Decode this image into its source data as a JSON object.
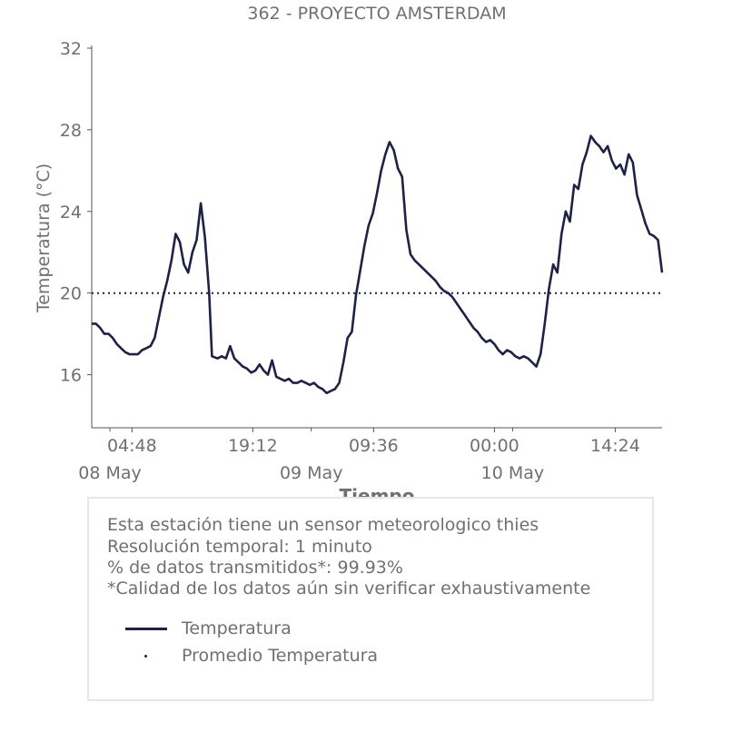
{
  "chart_data": {
    "type": "line",
    "title": "362 - PROYECTO AMSTERDAM",
    "xlabel": "Tiempo",
    "ylabel": "Temperatura (°C)",
    "ylim": [
      13.4,
      32
    ],
    "yticks": [
      16,
      20,
      24,
      28,
      32
    ],
    "xlim": [
      "2025-05-08T00:00",
      "2025-05-10T19:59"
    ],
    "xticks": [
      {
        "label": "04:48",
        "at": "2025-05-08T04:48"
      },
      {
        "label": "19:12",
        "at": "2025-05-08T19:12"
      },
      {
        "label": "09:36",
        "at": "2025-05-09T09:36"
      },
      {
        "label": "00:00",
        "at": "2025-05-10T00:00"
      },
      {
        "label": "14:24",
        "at": "2025-05-10T14:24"
      }
    ],
    "date_labels": [
      {
        "label": "08 May",
        "at": "2025-05-08T00:00"
      },
      {
        "label": "09 May",
        "at": "2025-05-09T00:00"
      },
      {
        "label": "10 May",
        "at": "2025-05-10T00:00"
      }
    ],
    "grid": false,
    "colors": {
      "line": "#1f2244",
      "text": "#707070",
      "axis": "#555555"
    },
    "series": [
      {
        "name": "Temperatura",
        "style": "solid",
        "points": [
          [
            "2025-05-08T00:00",
            18.5
          ],
          [
            "2025-05-08T00:30",
            18.5
          ],
          [
            "2025-05-08T01:00",
            18.3
          ],
          [
            "2025-05-08T01:30",
            18.0
          ],
          [
            "2025-05-08T02:00",
            18.0
          ],
          [
            "2025-05-08T02:30",
            17.8
          ],
          [
            "2025-05-08T03:00",
            17.5
          ],
          [
            "2025-05-08T03:30",
            17.3
          ],
          [
            "2025-05-08T04:00",
            17.1
          ],
          [
            "2025-05-08T04:30",
            17.0
          ],
          [
            "2025-05-08T05:00",
            17.0
          ],
          [
            "2025-05-08T05:30",
            17.0
          ],
          [
            "2025-05-08T06:00",
            17.2
          ],
          [
            "2025-05-08T06:30",
            17.3
          ],
          [
            "2025-05-08T07:00",
            17.4
          ],
          [
            "2025-05-08T07:30",
            17.8
          ],
          [
            "2025-05-08T08:00",
            18.8
          ],
          [
            "2025-05-08T08:30",
            19.8
          ],
          [
            "2025-05-08T09:00",
            20.6
          ],
          [
            "2025-05-08T09:30",
            21.6
          ],
          [
            "2025-05-08T10:00",
            22.9
          ],
          [
            "2025-05-08T10:30",
            22.5
          ],
          [
            "2025-05-08T11:00",
            21.4
          ],
          [
            "2025-05-08T11:30",
            21.0
          ],
          [
            "2025-05-08T12:00",
            22.0
          ],
          [
            "2025-05-08T12:30",
            22.6
          ],
          [
            "2025-05-08T13:00",
            24.4
          ],
          [
            "2025-05-08T13:30",
            22.7
          ],
          [
            "2025-05-08T14:00",
            20.0
          ],
          [
            "2025-05-08T14:20",
            16.9
          ],
          [
            "2025-05-08T15:00",
            16.8
          ],
          [
            "2025-05-08T15:30",
            16.9
          ],
          [
            "2025-05-08T16:00",
            16.8
          ],
          [
            "2025-05-08T16:30",
            17.4
          ],
          [
            "2025-05-08T17:00",
            16.8
          ],
          [
            "2025-05-08T17:30",
            16.6
          ],
          [
            "2025-05-08T18:00",
            16.4
          ],
          [
            "2025-05-08T18:30",
            16.3
          ],
          [
            "2025-05-08T19:00",
            16.1
          ],
          [
            "2025-05-08T19:30",
            16.2
          ],
          [
            "2025-05-08T20:00",
            16.5
          ],
          [
            "2025-05-08T20:30",
            16.2
          ],
          [
            "2025-05-08T21:00",
            16.0
          ],
          [
            "2025-05-08T21:30",
            16.7
          ],
          [
            "2025-05-08T22:00",
            15.9
          ],
          [
            "2025-05-08T22:30",
            15.8
          ],
          [
            "2025-05-08T23:00",
            15.7
          ],
          [
            "2025-05-08T23:30",
            15.8
          ],
          [
            "2025-05-09T00:00",
            15.6
          ],
          [
            "2025-05-09T00:30",
            15.6
          ],
          [
            "2025-05-09T01:00",
            15.7
          ],
          [
            "2025-05-09T01:30",
            15.6
          ],
          [
            "2025-05-09T02:00",
            15.5
          ],
          [
            "2025-05-09T02:30",
            15.6
          ],
          [
            "2025-05-09T03:00",
            15.4
          ],
          [
            "2025-05-09T03:30",
            15.3
          ],
          [
            "2025-05-09T04:00",
            15.1
          ],
          [
            "2025-05-09T04:30",
            15.2
          ],
          [
            "2025-05-09T05:00",
            15.3
          ],
          [
            "2025-05-09T05:30",
            15.6
          ],
          [
            "2025-05-09T06:00",
            16.6
          ],
          [
            "2025-05-09T06:30",
            17.8
          ],
          [
            "2025-05-09T07:00",
            18.1
          ],
          [
            "2025-05-09T07:30",
            19.9
          ],
          [
            "2025-05-09T08:00",
            21.1
          ],
          [
            "2025-05-09T08:30",
            22.3
          ],
          [
            "2025-05-09T09:00",
            23.3
          ],
          [
            "2025-05-09T09:30",
            23.9
          ],
          [
            "2025-05-09T10:00",
            24.9
          ],
          [
            "2025-05-09T10:30",
            26.0
          ],
          [
            "2025-05-09T11:00",
            26.8
          ],
          [
            "2025-05-09T11:30",
            27.4
          ],
          [
            "2025-05-09T12:00",
            27.0
          ],
          [
            "2025-05-09T12:30",
            26.1
          ],
          [
            "2025-05-09T13:00",
            25.7
          ],
          [
            "2025-05-09T13:30",
            23.1
          ],
          [
            "2025-05-09T14:00",
            21.9
          ],
          [
            "2025-05-09T14:30",
            21.6
          ],
          [
            "2025-05-09T15:00",
            21.4
          ],
          [
            "2025-05-09T15:30",
            21.2
          ],
          [
            "2025-05-09T16:00",
            21.0
          ],
          [
            "2025-05-09T16:30",
            20.8
          ],
          [
            "2025-05-09T17:00",
            20.6
          ],
          [
            "2025-05-09T17:30",
            20.3
          ],
          [
            "2025-05-09T18:00",
            20.1
          ],
          [
            "2025-05-09T18:30",
            20.0
          ],
          [
            "2025-05-09T19:00",
            19.8
          ],
          [
            "2025-05-09T19:30",
            19.5
          ],
          [
            "2025-05-09T20:00",
            19.2
          ],
          [
            "2025-05-09T20:30",
            18.9
          ],
          [
            "2025-05-09T21:00",
            18.6
          ],
          [
            "2025-05-09T21:30",
            18.3
          ],
          [
            "2025-05-09T22:00",
            18.1
          ],
          [
            "2025-05-09T22:30",
            17.8
          ],
          [
            "2025-05-09T23:00",
            17.6
          ],
          [
            "2025-05-09T23:30",
            17.7
          ],
          [
            "2025-05-10T00:00",
            17.5
          ],
          [
            "2025-05-10T00:30",
            17.2
          ],
          [
            "2025-05-10T01:00",
            17.0
          ],
          [
            "2025-05-10T01:30",
            17.2
          ],
          [
            "2025-05-10T02:00",
            17.1
          ],
          [
            "2025-05-10T02:30",
            16.9
          ],
          [
            "2025-05-10T03:00",
            16.8
          ],
          [
            "2025-05-10T03:30",
            16.9
          ],
          [
            "2025-05-10T04:00",
            16.8
          ],
          [
            "2025-05-10T04:30",
            16.6
          ],
          [
            "2025-05-10T05:00",
            16.4
          ],
          [
            "2025-05-10T05:30",
            17.0
          ],
          [
            "2025-05-10T06:00",
            18.5
          ],
          [
            "2025-05-10T06:30",
            20.2
          ],
          [
            "2025-05-10T07:00",
            21.4
          ],
          [
            "2025-05-10T07:30",
            21.0
          ],
          [
            "2025-05-10T08:00",
            22.9
          ],
          [
            "2025-05-10T08:30",
            24.0
          ],
          [
            "2025-05-10T09:00",
            23.5
          ],
          [
            "2025-05-10T09:30",
            25.3
          ],
          [
            "2025-05-10T10:00",
            25.1
          ],
          [
            "2025-05-10T10:30",
            26.3
          ],
          [
            "2025-05-10T11:00",
            26.9
          ],
          [
            "2025-05-10T11:30",
            27.7
          ],
          [
            "2025-05-10T12:00",
            27.4
          ],
          [
            "2025-05-10T12:30",
            27.2
          ],
          [
            "2025-05-10T13:00",
            26.9
          ],
          [
            "2025-05-10T13:30",
            27.2
          ],
          [
            "2025-05-10T14:00",
            26.5
          ],
          [
            "2025-05-10T14:30",
            26.1
          ],
          [
            "2025-05-10T15:00",
            26.3
          ],
          [
            "2025-05-10T15:30",
            25.8
          ],
          [
            "2025-05-10T16:00",
            26.8
          ],
          [
            "2025-05-10T16:30",
            26.4
          ],
          [
            "2025-05-10T17:00",
            24.8
          ],
          [
            "2025-05-10T17:30",
            24.1
          ],
          [
            "2025-05-10T18:00",
            23.4
          ],
          [
            "2025-05-10T18:30",
            22.9
          ],
          [
            "2025-05-10T19:00",
            22.8
          ],
          [
            "2025-05-10T19:30",
            22.6
          ],
          [
            "2025-05-10T19:59",
            21.0
          ]
        ]
      },
      {
        "name": "Promedio Temperatura",
        "style": "dotted",
        "points": [
          [
            "2025-05-08T00:00",
            20.0
          ],
          [
            "2025-05-10T19:59",
            20.0
          ]
        ]
      }
    ]
  },
  "info_box": {
    "lines": [
      "Esta estación tiene un sensor meteorologico thies",
      "Resolución temporal: 1 minuto",
      "% de datos transmitidos*: 99.93%",
      "*Calidad de los datos aún sin verificar exhaustivamente"
    ],
    "legend": [
      {
        "label": "Temperatura",
        "marker": "line"
      },
      {
        "label": "Promedio Temperatura",
        "marker": "dot"
      }
    ]
  }
}
